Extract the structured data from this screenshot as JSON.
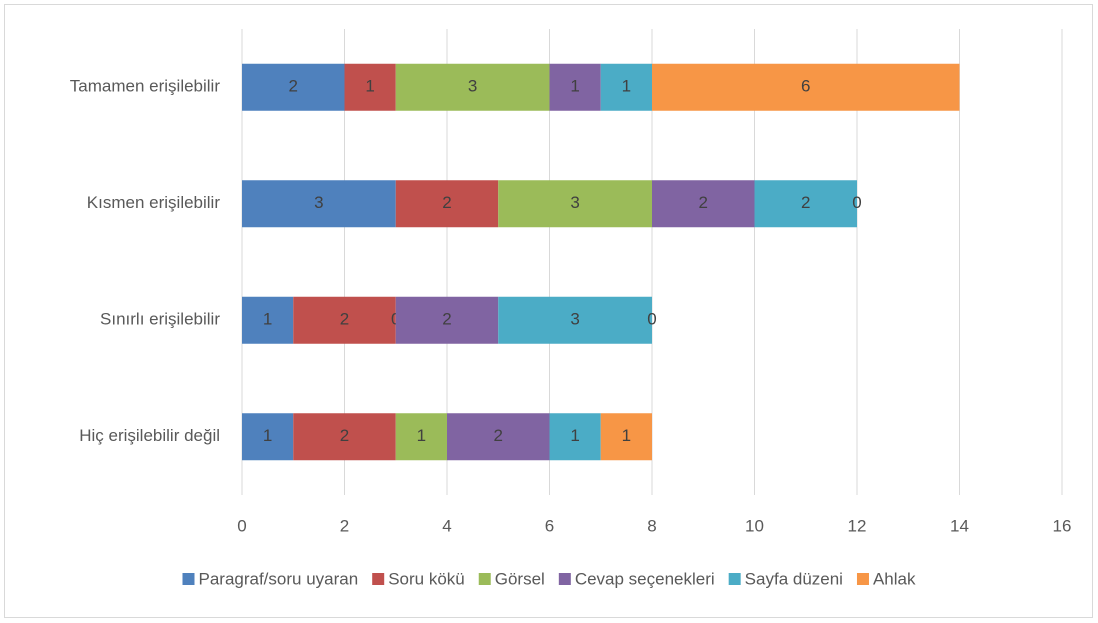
{
  "chart_data": {
    "type": "bar",
    "orientation": "horizontal",
    "stacked": true,
    "categories": [
      "Tamamen erişilebilir",
      "Kısmen erişilebilir",
      "Sınırlı erişilebilir",
      "Hiç erişilebilir değil"
    ],
    "series": [
      {
        "name": "Paragraf/soru uyaran",
        "color": "#4f81bd",
        "values": [
          2,
          3,
          1,
          1
        ]
      },
      {
        "name": "Soru kökü",
        "color": "#c0504d",
        "values": [
          1,
          2,
          2,
          2
        ]
      },
      {
        "name": "Görsel",
        "color": "#9bbb59",
        "values": [
          3,
          3,
          0,
          1
        ]
      },
      {
        "name": "Cevap seçenekleri",
        "color": "#8064a2",
        "values": [
          1,
          2,
          2,
          2
        ]
      },
      {
        "name": "Sayfa düzeni",
        "color": "#4bacc6",
        "values": [
          1,
          2,
          3,
          1
        ]
      },
      {
        "name": "Ahlak",
        "color": "#f79646",
        "values": [
          6,
          0,
          0,
          1
        ]
      }
    ],
    "xlim": [
      0,
      16
    ],
    "xticks": [
      0,
      2,
      4,
      6,
      8,
      10,
      12,
      14,
      16
    ],
    "grid": true,
    "legend": "bottom"
  }
}
